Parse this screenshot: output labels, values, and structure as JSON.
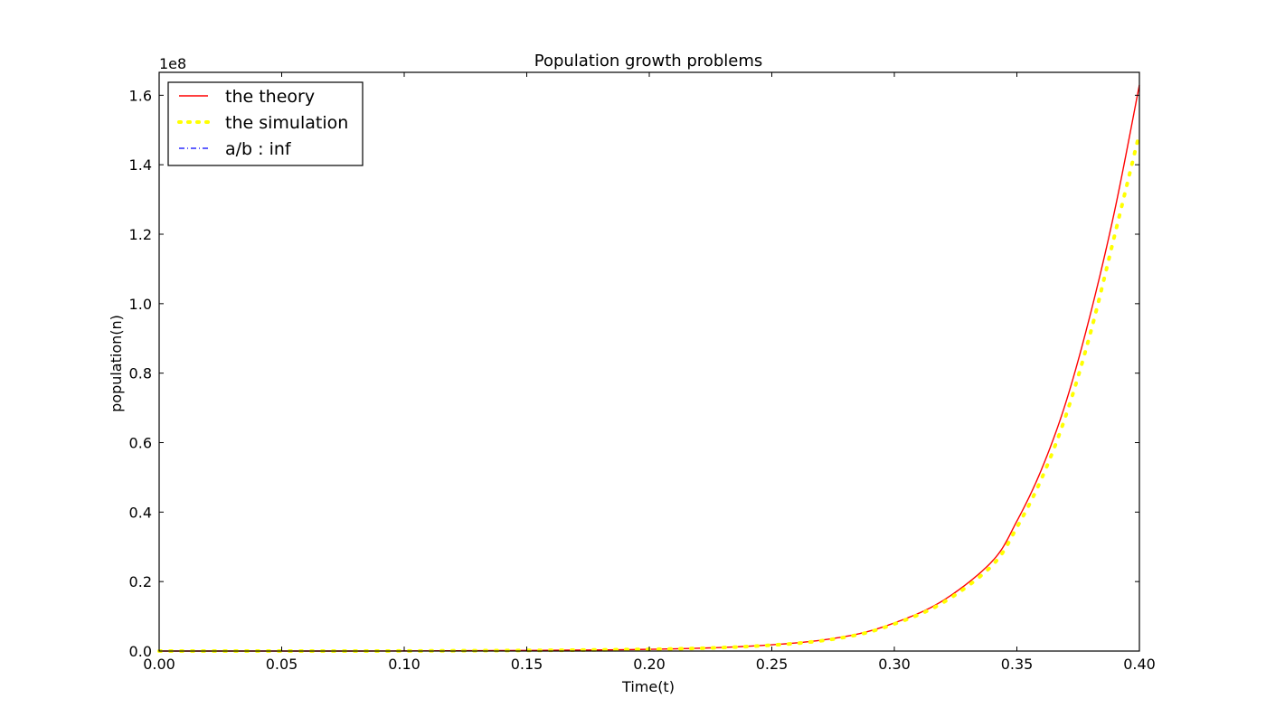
{
  "chart_data": {
    "type": "line",
    "title": "Population growth problems",
    "xlabel": "Time(t)",
    "ylabel": "population(n)",
    "y_offset_label": "1e8",
    "xlim": [
      0.0,
      0.4
    ],
    "ylim": [
      0.0,
      1.666
    ],
    "x_ticks": [
      "0.00",
      "0.05",
      "0.10",
      "0.15",
      "0.20",
      "0.25",
      "0.30",
      "0.35",
      "0.40"
    ],
    "y_ticks": [
      "0.0",
      "0.2",
      "0.4",
      "0.6",
      "0.8",
      "1.0",
      "1.2",
      "1.4",
      "1.6"
    ],
    "grid": false,
    "legend": "top-left",
    "series": [
      {
        "name": "the theory",
        "color": "#ff0000",
        "style": "solid",
        "x": [
          0.0,
          0.1,
          0.2,
          0.25,
          0.28,
          0.3,
          0.32,
          0.34,
          0.35,
          0.36,
          0.37,
          0.38,
          0.39,
          0.4
        ],
        "y": [
          0.0,
          0.0003,
          0.005,
          0.018,
          0.042,
          0.081,
          0.146,
          0.259,
          0.374,
          0.522,
          0.716,
          0.97,
          1.271,
          1.63
        ]
      },
      {
        "name": "the simulation",
        "color": "#ffff00",
        "style": "dotted",
        "x": [
          0.0,
          0.1,
          0.2,
          0.25,
          0.28,
          0.3,
          0.32,
          0.34,
          0.35,
          0.36,
          0.37,
          0.38,
          0.39,
          0.4
        ],
        "y": [
          0.0,
          0.0003,
          0.005,
          0.017,
          0.04,
          0.078,
          0.14,
          0.247,
          0.356,
          0.495,
          0.678,
          0.915,
          1.2,
          1.49
        ]
      },
      {
        "name": "a/b : inf",
        "color": "#0000ff",
        "style": "dashdot",
        "x": [],
        "y": []
      }
    ]
  }
}
